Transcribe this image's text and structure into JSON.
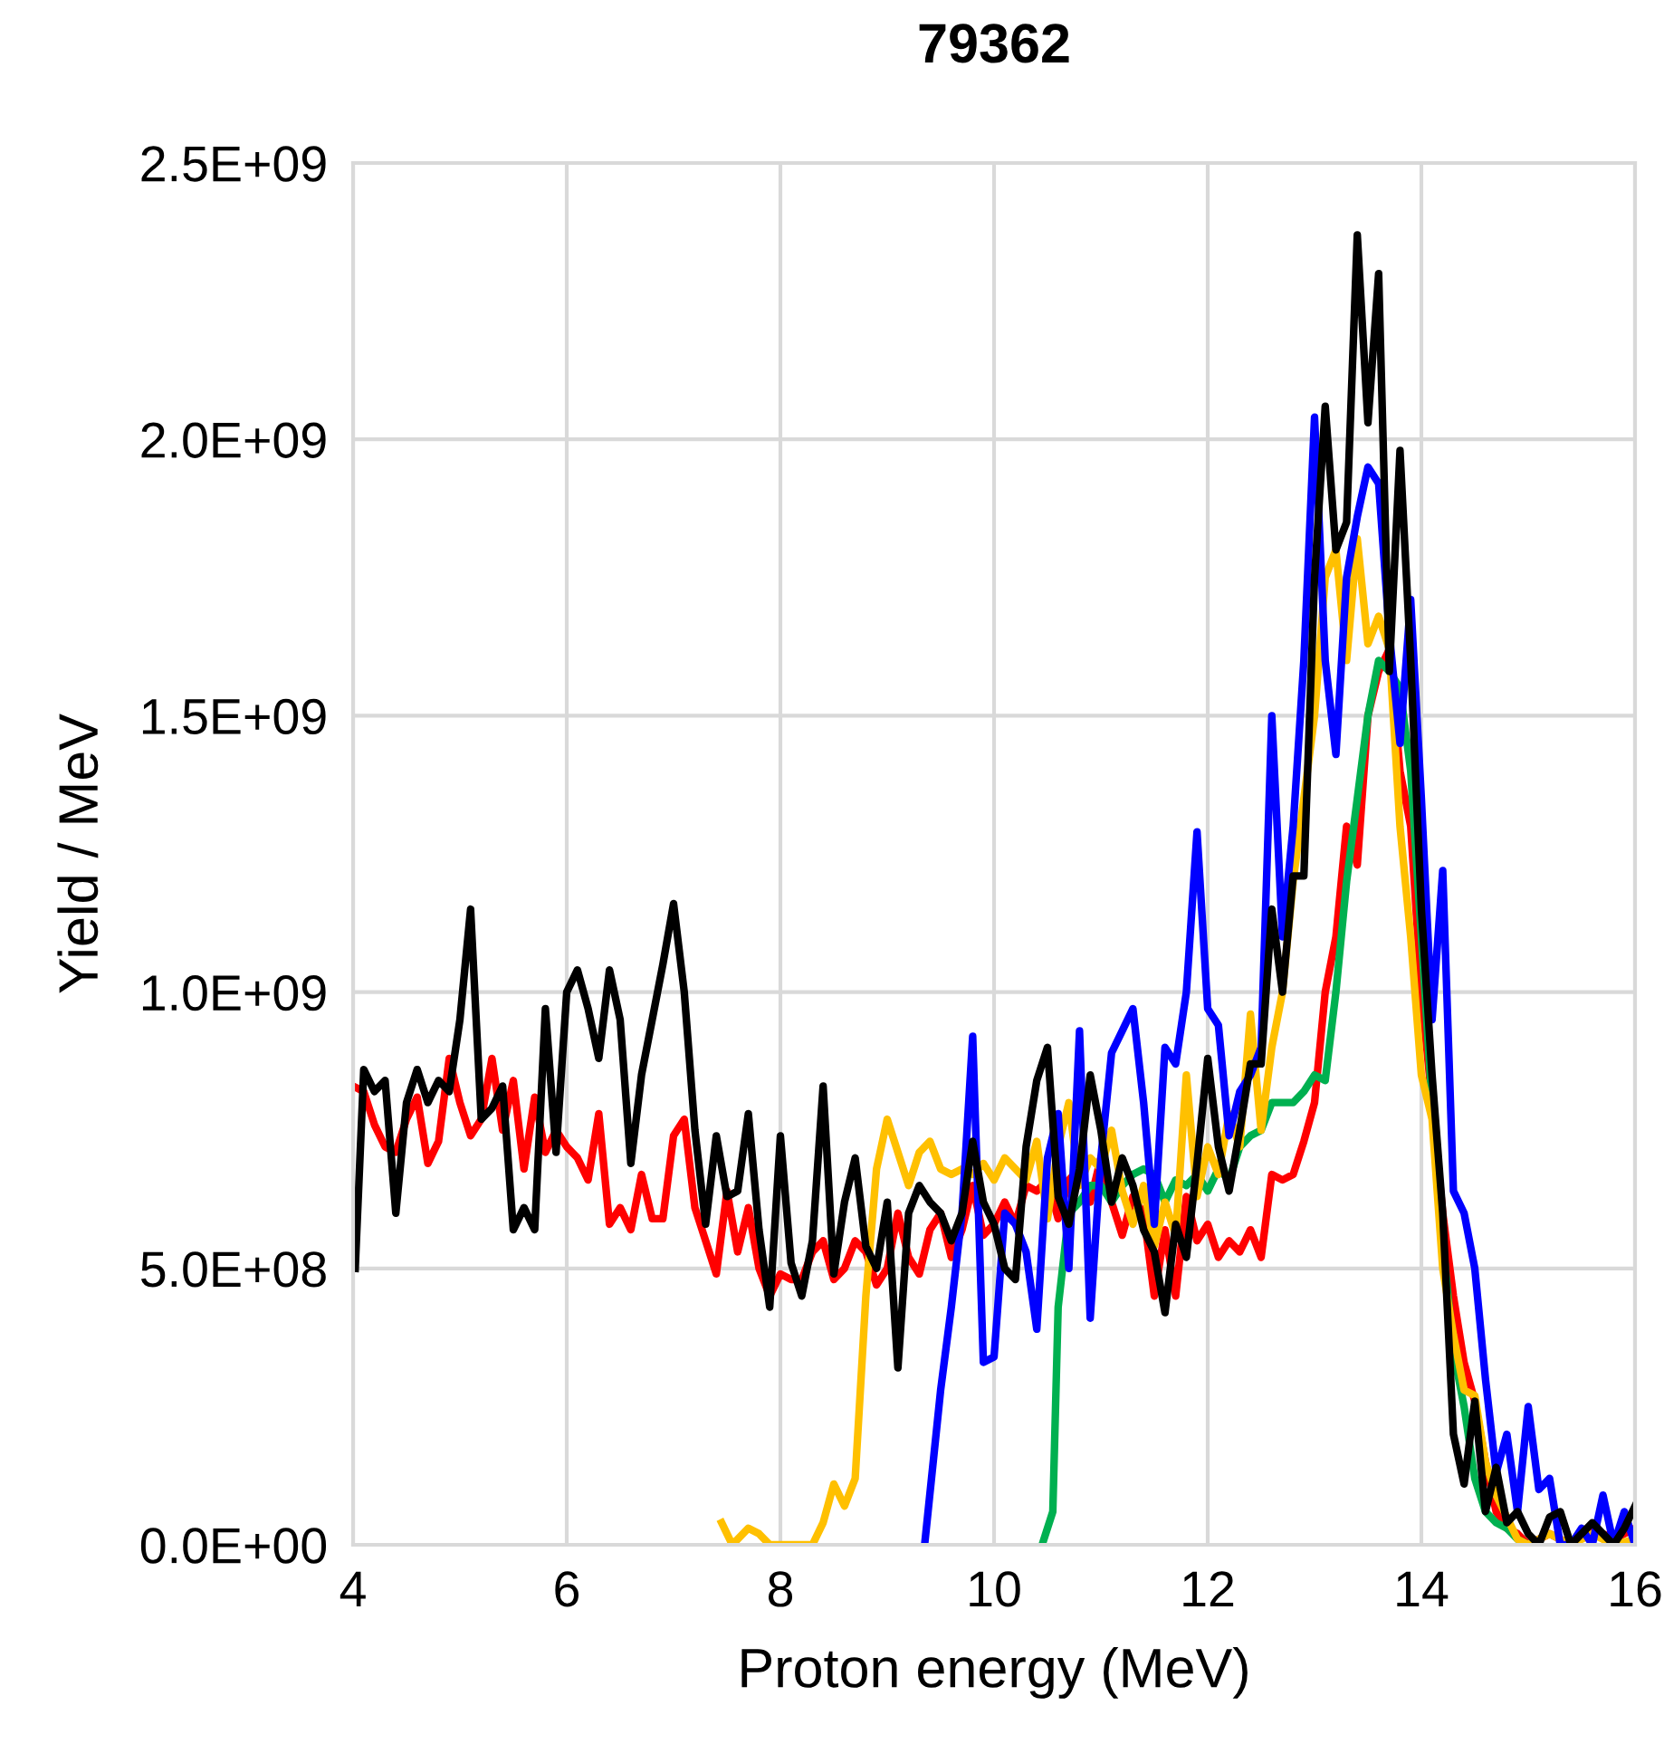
{
  "chart_data": {
    "type": "line",
    "title": "79362",
    "xlabel": "Proton energy (MeV)",
    "ylabel": "Yield / MeV",
    "xlim": [
      4,
      16
    ],
    "xticks": [
      4,
      6,
      8,
      10,
      12,
      14,
      16
    ],
    "ylim": [
      0,
      2500000000.0
    ],
    "yticks": [
      {
        "value": 0,
        "label": "0.0E+00"
      },
      {
        "value": 500000000.0,
        "label": "5.0E+08"
      },
      {
        "value": 1000000000.0,
        "label": "1.0E+09"
      },
      {
        "value": 1500000000.0,
        "label": "1.5E+09"
      },
      {
        "value": 2000000000.0,
        "label": "2.0E+09"
      },
      {
        "value": 2500000000.0,
        "label": "2.5E+09"
      }
    ],
    "grid": true,
    "legend": false,
    "marker": "none",
    "line_style": "solid",
    "series": [
      {
        "color": "#ff0000",
        "x": [
          4.0,
          4.1,
          4.2,
          4.3,
          4.4,
          4.5,
          4.6,
          4.7,
          4.8,
          4.9,
          5.0,
          5.1,
          5.2,
          5.3,
          5.4,
          5.5,
          5.6,
          5.7,
          5.8,
          5.9,
          6.0,
          6.1,
          6.2,
          6.3,
          6.4,
          6.5,
          6.6,
          6.7,
          6.8,
          6.9,
          7.0,
          7.1,
          7.2,
          7.3,
          7.4,
          7.5,
          7.6,
          7.7,
          7.8,
          7.9,
          8.0,
          8.1,
          8.2,
          8.3,
          8.4,
          8.5,
          8.6,
          8.7,
          8.8,
          8.9,
          9.0,
          9.1,
          9.2,
          9.3,
          9.4,
          9.5,
          9.6,
          9.7,
          9.8,
          9.9,
          10.0,
          10.1,
          10.2,
          10.3,
          10.4,
          10.5,
          10.6,
          10.7,
          10.8,
          10.9,
          11.0,
          11.1,
          11.2,
          11.3,
          11.4,
          11.5,
          11.6,
          11.7,
          11.8,
          11.9,
          12.0,
          12.1,
          12.2,
          12.3,
          12.4,
          12.5,
          12.6,
          12.7,
          12.8,
          12.9,
          13.0,
          13.1,
          13.2,
          13.3,
          13.4,
          13.5,
          13.6,
          13.7,
          13.8,
          13.9,
          14.0,
          14.1,
          14.2,
          14.3,
          14.4,
          14.5,
          14.6,
          14.7,
          14.8,
          14.9,
          15.0,
          15.2,
          15.4,
          15.6,
          15.8,
          16.0
        ],
        "values": [
          830000000.0,
          820000000.0,
          760000000.0,
          720000000.0,
          710000000.0,
          770000000.0,
          810000000.0,
          690000000.0,
          730000000.0,
          880000000.0,
          800000000.0,
          740000000.0,
          770000000.0,
          880000000.0,
          750000000.0,
          840000000.0,
          680000000.0,
          810000000.0,
          710000000.0,
          750000000.0,
          720000000.0,
          700000000.0,
          660000000.0,
          780000000.0,
          580000000.0,
          610000000.0,
          570000000.0,
          670000000.0,
          590000000.0,
          590000000.0,
          740000000.0,
          770000000.0,
          610000000.0,
          550000000.0,
          490000000.0,
          640000000.0,
          530000000.0,
          610000000.0,
          500000000.0,
          450000000.0,
          490000000.0,
          480000000.0,
          480000000.0,
          530000000.0,
          550000000.0,
          480000000.0,
          500000000.0,
          550000000.0,
          530000000.0,
          470000000.0,
          500000000.0,
          600000000.0,
          520000000.0,
          490000000.0,
          570000000.0,
          600000000.0,
          520000000.0,
          570000000.0,
          650000000.0,
          560000000.0,
          580000000.0,
          620000000.0,
          580000000.0,
          650000000.0,
          640000000.0,
          660000000.0,
          590000000.0,
          660000000.0,
          680000000.0,
          620000000.0,
          700000000.0,
          620000000.0,
          560000000.0,
          630000000.0,
          600000000.0,
          450000000.0,
          570000000.0,
          450000000.0,
          630000000.0,
          550000000.0,
          580000000.0,
          520000000.0,
          550000000.0,
          530000000.0,
          570000000.0,
          520000000.0,
          670000000.0,
          660000000.0,
          670000000.0,
          730000000.0,
          800000000.0,
          1000000000.0,
          1100000000.0,
          1300000000.0,
          1230000000.0,
          1500000000.0,
          1580000000.0,
          1620000000.0,
          1400000000.0,
          1300000000.0,
          1000000000.0,
          800000000.0,
          600000000.0,
          450000000.0,
          330000000.0,
          260000000.0,
          150000000.0,
          60000000.0,
          30000000.0,
          20000000.0,
          0,
          20000000.0,
          0,
          30000000.0,
          10000000.0,
          30000000.0
        ]
      },
      {
        "color": "#00b050",
        "x": [
          10.45,
          10.55,
          10.6,
          10.7,
          10.8,
          10.9,
          11.0,
          11.1,
          11.2,
          11.3,
          11.4,
          11.5,
          11.6,
          11.7,
          11.8,
          11.9,
          12.0,
          12.1,
          12.2,
          12.3,
          12.4,
          12.5,
          12.6,
          12.7,
          12.8,
          12.9,
          13.0,
          13.1,
          13.2,
          13.3,
          13.4,
          13.5,
          13.6,
          13.7,
          13.8,
          13.9,
          14.0,
          14.1,
          14.2,
          14.3,
          14.4,
          14.5,
          14.6,
          14.7,
          14.8,
          14.9,
          15.0
        ],
        "values": [
          0,
          60000000.0,
          430000000.0,
          600000000.0,
          620000000.0,
          650000000.0,
          650000000.0,
          620000000.0,
          650000000.0,
          670000000.0,
          680000000.0,
          670000000.0,
          620000000.0,
          660000000.0,
          650000000.0,
          670000000.0,
          640000000.0,
          680000000.0,
          660000000.0,
          720000000.0,
          740000000.0,
          750000000.0,
          800000000.0,
          800000000.0,
          800000000.0,
          820000000.0,
          850000000.0,
          840000000.0,
          1000000000.0,
          1200000000.0,
          1350000000.0,
          1500000000.0,
          1600000000.0,
          1580000000.0,
          1550000000.0,
          1400000000.0,
          1100000000.0,
          800000000.0,
          550000000.0,
          350000000.0,
          250000000.0,
          120000000.0,
          60000000.0,
          40000000.0,
          30000000.0,
          10000000.0,
          0
        ]
      },
      {
        "color": "#ffc000",
        "x": [
          7.45,
          7.55,
          7.7,
          7.8,
          7.9,
          8.0,
          8.1,
          8.2,
          8.3,
          8.4,
          8.5,
          8.6,
          8.7,
          8.8,
          8.9,
          9.0,
          9.1,
          9.2,
          9.3,
          9.4,
          9.5,
          9.6,
          9.7,
          9.8,
          9.9,
          10.0,
          10.1,
          10.2,
          10.3,
          10.4,
          10.5,
          10.6,
          10.7,
          10.8,
          10.9,
          11.0,
          11.1,
          11.2,
          11.3,
          11.4,
          11.5,
          11.6,
          11.7,
          11.8,
          11.9,
          12.0,
          12.1,
          12.2,
          12.3,
          12.4,
          12.5,
          12.6,
          12.7,
          12.8,
          12.9,
          13.0,
          13.1,
          13.2,
          13.3,
          13.4,
          13.5,
          13.6,
          13.7,
          13.8,
          13.9,
          14.0,
          14.1,
          14.2,
          14.3,
          14.4,
          14.5,
          14.6,
          14.7,
          14.8,
          14.9,
          15.0,
          15.2,
          15.4,
          15.6,
          15.8,
          16.0
        ],
        "values": [
          40000000.0,
          0,
          30000000.0,
          20000000.0,
          0,
          0,
          0,
          0,
          0,
          40000000.0,
          110000000.0,
          70000000.0,
          120000000.0,
          450000000.0,
          680000000.0,
          770000000.0,
          710000000.0,
          650000000.0,
          710000000.0,
          730000000.0,
          680000000.0,
          670000000.0,
          680000000.0,
          670000000.0,
          690000000.0,
          660000000.0,
          700000000.0,
          680000000.0,
          660000000.0,
          730000000.0,
          590000000.0,
          720000000.0,
          800000000.0,
          650000000.0,
          700000000.0,
          680000000.0,
          750000000.0,
          640000000.0,
          580000000.0,
          650000000.0,
          540000000.0,
          620000000.0,
          560000000.0,
          850000000.0,
          630000000.0,
          720000000.0,
          670000000.0,
          780000000.0,
          720000000.0,
          960000000.0,
          750000000.0,
          900000000.0,
          1000000000.0,
          1200000000.0,
          1350000000.0,
          1500000000.0,
          1750000000.0,
          1800000000.0,
          1600000000.0,
          1820000000.0,
          1630000000.0,
          1680000000.0,
          1620000000.0,
          1300000000.0,
          1100000000.0,
          850000000.0,
          770000000.0,
          500000000.0,
          380000000.0,
          280000000.0,
          270000000.0,
          150000000.0,
          90000000.0,
          50000000.0,
          10000000.0,
          0,
          20000000.0,
          0,
          20000000.0,
          0,
          10000000.0
        ]
      },
      {
        "color": "#0000ff",
        "x": [
          9.35,
          9.5,
          9.6,
          9.7,
          9.8,
          9.9,
          10.0,
          10.1,
          10.2,
          10.3,
          10.4,
          10.5,
          10.6,
          10.7,
          10.8,
          10.9,
          11.0,
          11.1,
          11.2,
          11.3,
          11.4,
          11.5,
          11.6,
          11.7,
          11.8,
          11.9,
          12.0,
          12.1,
          12.2,
          12.3,
          12.4,
          12.5,
          12.6,
          12.7,
          12.8,
          12.9,
          13.0,
          13.1,
          13.2,
          13.3,
          13.4,
          13.5,
          13.6,
          13.7,
          13.8,
          13.9,
          14.0,
          14.1,
          14.2,
          14.3,
          14.4,
          14.5,
          14.6,
          14.7,
          14.8,
          14.9,
          15.0,
          15.1,
          15.2,
          15.3,
          15.4,
          15.5,
          15.6,
          15.7,
          15.8,
          15.9,
          16.0
        ],
        "values": [
          0,
          280000000.0,
          430000000.0,
          600000000.0,
          920000000.0,
          330000000.0,
          340000000.0,
          600000000.0,
          580000000.0,
          530000000.0,
          390000000.0,
          700000000.0,
          780000000.0,
          500000000.0,
          930000000.0,
          410000000.0,
          700000000.0,
          890000000.0,
          930000000.0,
          970000000.0,
          800000000.0,
          580000000.0,
          900000000.0,
          870000000.0,
          1000000000.0,
          1290000000.0,
          970000000.0,
          940000000.0,
          740000000.0,
          820000000.0,
          850000000.0,
          900000000.0,
          1500000000.0,
          1100000000.0,
          1300000000.0,
          1600000000.0,
          2040000000.0,
          1600000000.0,
          1430000000.0,
          1750000000.0,
          1860000000.0,
          1950000000.0,
          1920000000.0,
          1650000000.0,
          1450000000.0,
          1710000000.0,
          1350000000.0,
          950000000.0,
          1220000000.0,
          640000000.0,
          600000000.0,
          500000000.0,
          300000000.0,
          130000000.0,
          200000000.0,
          60000000.0,
          250000000.0,
          100000000.0,
          120000000.0,
          0,
          0,
          30000000.0,
          0,
          90000000.0,
          0,
          60000000.0,
          0
        ]
      },
      {
        "color": "#000000",
        "x": [
          4.02,
          4.1,
          4.2,
          4.3,
          4.4,
          4.5,
          4.6,
          4.7,
          4.8,
          4.9,
          5.0,
          5.1,
          5.2,
          5.3,
          5.4,
          5.5,
          5.6,
          5.7,
          5.8,
          5.9,
          6.0,
          6.1,
          6.2,
          6.3,
          6.4,
          6.5,
          6.6,
          6.7,
          6.8,
          6.9,
          7.0,
          7.1,
          7.2,
          7.3,
          7.4,
          7.5,
          7.6,
          7.7,
          7.8,
          7.9,
          8.0,
          8.1,
          8.2,
          8.3,
          8.4,
          8.5,
          8.6,
          8.7,
          8.8,
          8.9,
          9.0,
          9.1,
          9.2,
          9.3,
          9.4,
          9.5,
          9.6,
          9.7,
          9.8,
          9.9,
          10.0,
          10.1,
          10.2,
          10.3,
          10.4,
          10.5,
          10.6,
          10.7,
          10.8,
          10.9,
          11.0,
          11.1,
          11.2,
          11.3,
          11.4,
          11.5,
          11.6,
          11.7,
          11.8,
          11.9,
          12.0,
          12.1,
          12.2,
          12.3,
          12.4,
          12.5,
          12.6,
          12.7,
          12.8,
          12.9,
          13.0,
          13.1,
          13.2,
          13.3,
          13.4,
          13.5,
          13.6,
          13.7,
          13.8,
          13.9,
          14.0,
          14.1,
          14.2,
          14.3,
          14.4,
          14.5,
          14.6,
          14.7,
          14.8,
          14.9,
          15.0,
          15.1,
          15.2,
          15.3,
          15.4,
          15.6,
          15.8,
          15.9,
          16.0
        ],
        "values": [
          500000000.0,
          860000000.0,
          820000000.0,
          840000000.0,
          600000000.0,
          800000000.0,
          860000000.0,
          800000000.0,
          840000000.0,
          820000000.0,
          950000000.0,
          1150000000.0,
          770000000.0,
          790000000.0,
          830000000.0,
          570000000.0,
          610000000.0,
          570000000.0,
          970000000.0,
          710000000.0,
          1000000000.0,
          1040000000.0,
          970000000.0,
          880000000.0,
          1040000000.0,
          950000000.0,
          690000000.0,
          850000000.0,
          950000000.0,
          1050000000.0,
          1160000000.0,
          1000000000.0,
          750000000.0,
          580000000.0,
          740000000.0,
          630000000.0,
          640000000.0,
          780000000.0,
          570000000.0,
          430000000.0,
          740000000.0,
          510000000.0,
          450000000.0,
          550000000.0,
          830000000.0,
          490000000.0,
          620000000.0,
          700000000.0,
          540000000.0,
          500000000.0,
          620000000.0,
          320000000.0,
          600000000.0,
          650000000.0,
          620000000.0,
          600000000.0,
          550000000.0,
          600000000.0,
          730000000.0,
          620000000.0,
          580000000.0,
          500000000.0,
          480000000.0,
          720000000.0,
          840000000.0,
          900000000.0,
          630000000.0,
          580000000.0,
          680000000.0,
          850000000.0,
          750000000.0,
          620000000.0,
          700000000.0,
          650000000.0,
          570000000.0,
          530000000.0,
          420000000.0,
          580000000.0,
          520000000.0,
          690000000.0,
          880000000.0,
          720000000.0,
          640000000.0,
          750000000.0,
          870000000.0,
          870000000.0,
          1150000000.0,
          1000000000.0,
          1210000000.0,
          1210000000.0,
          1750000000.0,
          2060000000.0,
          1800000000.0,
          1850000000.0,
          2370000000.0,
          2030000000.0,
          2300000000.0,
          1580000000.0,
          1980000000.0,
          1600000000.0,
          1150000000.0,
          850000000.0,
          600000000.0,
          200000000.0,
          110000000.0,
          260000000.0,
          60000000.0,
          140000000.0,
          40000000.0,
          60000000.0,
          20000000.0,
          0,
          50000000.0,
          60000000.0,
          0,
          40000000.0,
          0,
          30000000.0,
          70000000.0
        ]
      }
    ]
  }
}
